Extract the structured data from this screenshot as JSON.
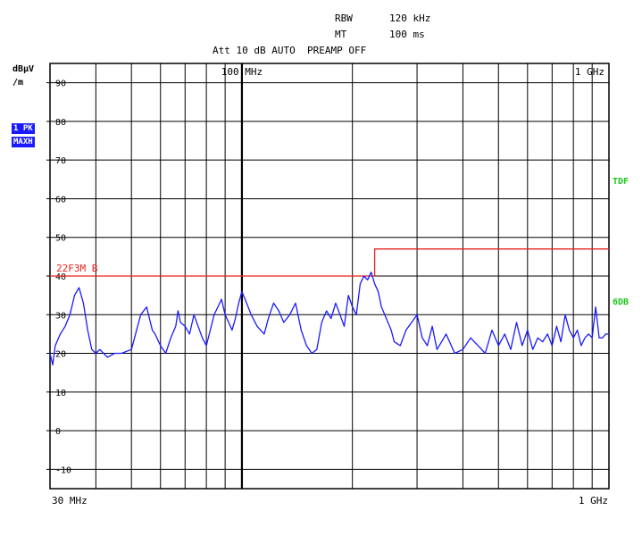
{
  "header": {
    "rbw_label": "RBW",
    "rbw_value": "120 kHz",
    "mt_label": "MT",
    "mt_value": "100 ms",
    "line3": "Att 10 dB AUTO  PREAMP OFF"
  },
  "unit": {
    "line1": "dBµV",
    "line2": "/m"
  },
  "trace_badges": [
    "1 PK",
    "MAXH"
  ],
  "side_labels": [
    "TDF",
    "6DB"
  ],
  "limit_label": "22F3M B",
  "colors": {
    "trace": "#1a1aff",
    "limit": "#e8211c",
    "side": "#19c819",
    "badge": "#1a1aff"
  },
  "chart_data": {
    "type": "line",
    "x_scale": "log",
    "xlim": [
      30,
      1000
    ],
    "ylim": [
      -15,
      95
    ],
    "grid": true,
    "y_ticks": [
      90,
      80,
      70,
      60,
      50,
      40,
      30,
      20,
      10,
      0,
      -10
    ],
    "x_ticks": [
      40,
      50,
      60,
      70,
      80,
      90,
      100,
      200,
      300,
      400,
      500,
      600,
      700,
      800,
      900
    ],
    "top_x_labels": [
      {
        "x": 100,
        "label": "100 MHz"
      },
      {
        "x": 1000,
        "label": "1 GHz"
      }
    ],
    "bottom_x_labels": [
      {
        "x": 30,
        "label": "30 MHz"
      },
      {
        "x": 1000,
        "label": "1 GHz"
      }
    ],
    "limit_line": [
      [
        30,
        40
      ],
      [
        230,
        40
      ],
      [
        230,
        47
      ],
      [
        1000,
        47
      ]
    ],
    "series": [
      {
        "x": [
          30,
          30.5,
          31,
          32,
          33,
          34,
          35,
          36,
          37,
          38,
          39,
          40,
          41,
          43,
          45,
          47,
          50,
          53,
          55,
          56,
          57,
          58,
          60,
          62,
          64,
          66,
          67,
          68,
          70,
          72,
          74,
          76,
          78,
          80,
          82,
          84,
          86,
          88,
          90,
          92,
          94,
          96,
          98,
          100,
          103,
          106,
          110,
          115,
          118,
          122,
          126,
          130,
          135,
          140,
          145,
          150,
          155,
          160,
          165,
          170,
          175,
          180,
          185,
          190,
          195,
          200,
          205,
          210,
          215,
          220,
          225,
          230,
          235,
          240,
          245,
          250,
          255,
          260,
          270,
          280,
          290,
          300,
          310,
          320,
          330,
          340,
          350,
          360,
          380,
          400,
          420,
          440,
          460,
          480,
          500,
          520,
          540,
          560,
          580,
          600,
          620,
          640,
          660,
          680,
          700,
          720,
          740,
          760,
          780,
          800,
          820,
          840,
          860,
          880,
          900,
          920,
          940,
          960,
          980,
          1000
        ],
        "y": [
          20,
          17,
          22,
          25,
          27,
          30,
          35,
          37,
          33,
          26,
          21,
          20,
          21,
          19,
          20,
          20,
          21,
          30,
          32,
          29,
          26,
          25,
          22,
          20,
          24,
          27,
          31,
          28,
          27,
          25,
          30,
          27,
          24,
          22,
          26,
          30,
          32,
          34,
          30,
          28,
          26,
          29,
          33,
          36,
          33,
          30,
          27,
          25,
          29,
          33,
          31,
          28,
          30,
          33,
          26,
          22,
          20,
          21,
          28,
          31,
          29,
          33,
          30,
          27,
          35,
          32,
          30,
          38,
          40,
          39,
          41,
          38,
          36,
          32,
          30,
          28,
          26,
          23,
          22,
          26,
          28,
          30,
          24,
          22,
          27,
          21,
          23,
          25,
          20,
          21,
          24,
          22,
          20,
          26,
          22,
          25,
          21,
          28,
          22,
          26,
          21,
          24,
          23,
          25,
          22,
          27,
          23,
          30,
          26,
          24,
          26,
          22,
          24,
          25,
          24,
          32,
          24,
          24,
          25,
          25
        ]
      }
    ]
  }
}
